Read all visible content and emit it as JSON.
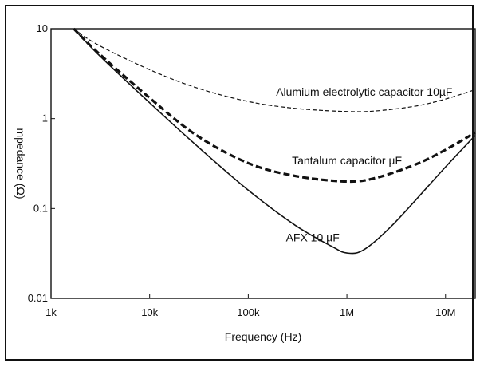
{
  "chart_data": {
    "type": "line",
    "title": "",
    "xlabel": "Frequency (Hz)",
    "ylabel": "mpedance (Ω)",
    "x_scale": "log",
    "y_scale": "log",
    "xlim": [
      1000,
      20000000
    ],
    "ylim": [
      0.01,
      10
    ],
    "grid": false,
    "legend": "none",
    "x_ticks": [
      {
        "value": 1000,
        "label": "1k"
      },
      {
        "value": 10000,
        "label": "10k"
      },
      {
        "value": 100000,
        "label": "100k"
      },
      {
        "value": 1000000,
        "label": "1M"
      },
      {
        "value": 10000000,
        "label": "10M"
      }
    ],
    "y_ticks": [
      {
        "value": 10,
        "label": "10"
      },
      {
        "value": 1,
        "label": "1"
      },
      {
        "value": 0.1,
        "label": "0.1"
      },
      {
        "value": 0.01,
        "label": "0.01"
      }
    ],
    "series": [
      {
        "name": "Alumium electrolytic capacitor 10µF",
        "style": "thin-dashed",
        "x": [
          1700,
          3000,
          10000,
          30000,
          100000,
          300000,
          1000000,
          2000000,
          5000000,
          10000000,
          20000000
        ],
        "y": [
          10,
          6.6,
          3.5,
          2.2,
          1.55,
          1.3,
          1.2,
          1.22,
          1.38,
          1.65,
          2.1
        ]
      },
      {
        "name": "Tantalum capacitor µF",
        "style": "thick-dashed",
        "x": [
          1700,
          3000,
          10000,
          30000,
          100000,
          300000,
          1000000,
          2000000,
          5000000,
          10000000,
          20000000
        ],
        "y": [
          10,
          5.4,
          1.7,
          0.65,
          0.32,
          0.23,
          0.2,
          0.22,
          0.31,
          0.45,
          0.7
        ]
      },
      {
        "name": "AFX 10 µF",
        "style": "solid",
        "x": [
          1700,
          3000,
          10000,
          30000,
          100000,
          300000,
          700000,
          1000000,
          1500000,
          3000000,
          10000000,
          20000000
        ],
        "y": [
          10,
          5.2,
          1.5,
          0.5,
          0.16,
          0.065,
          0.038,
          0.032,
          0.035,
          0.068,
          0.29,
          0.65
        ]
      }
    ],
    "annotations": [
      {
        "text": "Alumium electrolytic capacitor 10µF",
        "x": 1500000,
        "y": 1.8
      },
      {
        "text": "Tantalum capacitor µF",
        "x": 1000000,
        "y": 0.31
      },
      {
        "text": "AFX 10 µF",
        "x": 450000,
        "y": 0.043
      }
    ]
  }
}
